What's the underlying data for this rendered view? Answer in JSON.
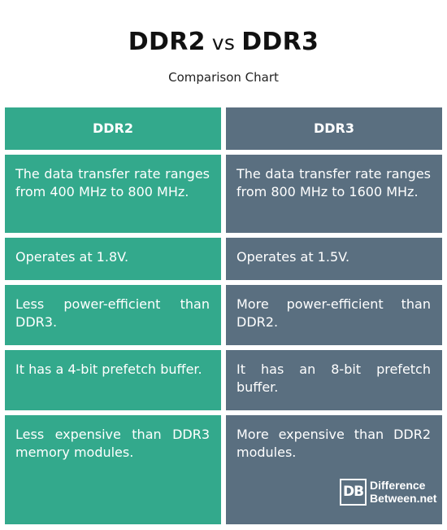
{
  "title": {
    "left": "DDR2",
    "vs": "vs",
    "right": "DDR3",
    "subtitle": "Comparison Chart"
  },
  "table": {
    "headers": [
      "DDR2",
      "DDR3"
    ],
    "rows": [
      [
        "The data transfer rate ranges from 400 MHz to 800 MHz.",
        "The data transfer rate ranges from 800 MHz to 1600 MHz."
      ],
      [
        "Operates at 1.8V.",
        "Operates at 1.5V."
      ],
      [
        "Less power-efficient than DDR3.",
        "More power-efficient than DDR2."
      ],
      [
        "It has a 4-bit prefetch buffer.",
        "It has an 8-bit prefetch buffer."
      ],
      [
        "Less expensive than DDR3 memory modules.",
        "More expensive than DDR2 modules."
      ]
    ]
  },
  "logo": {
    "mark": "DB",
    "line1": "Difference",
    "line2": "Between.net"
  },
  "colors": {
    "ddr2": "#33a98c",
    "ddr3": "#5a6f80"
  }
}
